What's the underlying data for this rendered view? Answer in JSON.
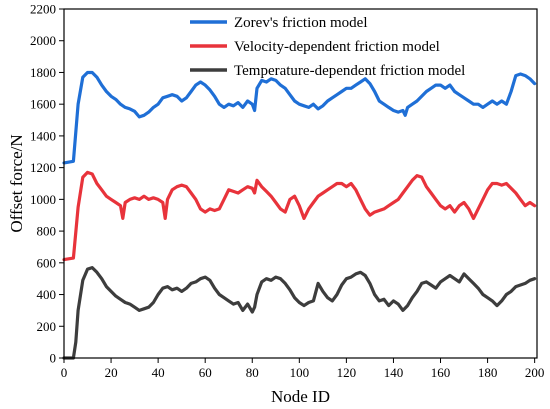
{
  "chart_data": {
    "type": "line",
    "title": "",
    "xlabel": "Node ID",
    "ylabel": "Offset force/N",
    "xlim": [
      0,
      201
    ],
    "ylim": [
      0,
      2200
    ],
    "xticks": [
      0,
      20,
      40,
      60,
      80,
      100,
      120,
      140,
      160,
      180,
      200
    ],
    "yticks": [
      0,
      200,
      400,
      600,
      800,
      1000,
      1200,
      1400,
      1600,
      1800,
      2000,
      2200
    ],
    "grid": false,
    "legend_position": "top-right",
    "series": [
      {
        "name": "Zorev's friction model",
        "color": "#1f6fd6",
        "x": [
          0,
          4,
          6,
          8,
          10,
          12,
          14,
          16,
          18,
          20,
          22,
          24,
          26,
          28,
          30,
          32,
          34,
          36,
          38,
          40,
          42,
          44,
          46,
          48,
          50,
          52,
          54,
          56,
          58,
          60,
          62,
          64,
          66,
          68,
          70,
          72,
          74,
          76,
          78,
          80,
          81,
          82,
          84,
          86,
          88,
          90,
          92,
          94,
          96,
          98,
          100,
          102,
          104,
          106,
          108,
          110,
          112,
          114,
          116,
          118,
          120,
          122,
          124,
          126,
          128,
          130,
          132,
          134,
          136,
          138,
          140,
          142,
          144,
          145,
          146,
          148,
          150,
          152,
          154,
          156,
          158,
          160,
          162,
          164,
          166,
          168,
          170,
          172,
          174,
          176,
          178,
          180,
          182,
          184,
          186,
          188,
          190,
          192,
          194,
          196,
          198,
          200
        ],
        "y": [
          1230,
          1240,
          1600,
          1770,
          1800,
          1800,
          1770,
          1720,
          1680,
          1650,
          1630,
          1600,
          1580,
          1570,
          1555,
          1520,
          1530,
          1550,
          1580,
          1600,
          1640,
          1650,
          1660,
          1650,
          1620,
          1640,
          1680,
          1720,
          1740,
          1720,
          1690,
          1650,
          1600,
          1580,
          1600,
          1590,
          1610,
          1580,
          1620,
          1600,
          1560,
          1700,
          1750,
          1740,
          1760,
          1750,
          1720,
          1700,
          1660,
          1620,
          1600,
          1590,
          1580,
          1600,
          1570,
          1590,
          1620,
          1640,
          1660,
          1680,
          1700,
          1700,
          1720,
          1740,
          1760,
          1730,
          1680,
          1620,
          1600,
          1580,
          1560,
          1550,
          1560,
          1530,
          1580,
          1600,
          1620,
          1650,
          1680,
          1700,
          1720,
          1720,
          1700,
          1720,
          1680,
          1660,
          1640,
          1620,
          1600,
          1600,
          1580,
          1600,
          1620,
          1600,
          1620,
          1600,
          1680,
          1780,
          1790,
          1780,
          1760,
          1730
        ]
      },
      {
        "name": "Velocity-dependent friction model",
        "color": "#e8333b",
        "x": [
          0,
          4,
          6,
          8,
          10,
          12,
          14,
          16,
          18,
          20,
          22,
          24,
          25,
          26,
          28,
          30,
          32,
          34,
          36,
          38,
          40,
          42,
          43,
          44,
          46,
          48,
          50,
          52,
          54,
          56,
          58,
          60,
          62,
          64,
          66,
          68,
          70,
          72,
          74,
          76,
          78,
          80,
          81,
          82,
          84,
          86,
          88,
          90,
          92,
          94,
          96,
          98,
          100,
          102,
          104,
          106,
          108,
          110,
          112,
          114,
          116,
          118,
          120,
          122,
          124,
          126,
          128,
          130,
          132,
          134,
          136,
          138,
          140,
          142,
          144,
          146,
          148,
          150,
          152,
          154,
          156,
          158,
          160,
          162,
          164,
          166,
          168,
          170,
          172,
          174,
          176,
          178,
          180,
          182,
          184,
          186,
          188,
          190,
          192,
          194,
          196,
          198,
          200
        ],
        "y": [
          620,
          630,
          950,
          1140,
          1170,
          1160,
          1100,
          1060,
          1020,
          1000,
          980,
          960,
          880,
          980,
          1000,
          1010,
          1000,
          1020,
          1000,
          1010,
          1000,
          980,
          880,
          1000,
          1060,
          1080,
          1090,
          1080,
          1040,
          1000,
          940,
          920,
          940,
          930,
          940,
          1000,
          1060,
          1050,
          1040,
          1060,
          1080,
          1070,
          1040,
          1120,
          1080,
          1050,
          1020,
          980,
          940,
          920,
          1000,
          1020,
          960,
          880,
          940,
          980,
          1020,
          1040,
          1060,
          1080,
          1100,
          1100,
          1080,
          1100,
          1060,
          1000,
          940,
          900,
          920,
          930,
          940,
          960,
          980,
          1000,
          1040,
          1080,
          1120,
          1150,
          1140,
          1080,
          1040,
          1000,
          960,
          940,
          960,
          920,
          960,
          980,
          940,
          880,
          940,
          1000,
          1060,
          1100,
          1100,
          1090,
          1100,
          1070,
          1040,
          1000,
          960,
          980,
          960
        ]
      },
      {
        "name": "Temperature-dependent friction model",
        "color": "#3d3d3d",
        "x": [
          0,
          4,
          5,
          6,
          8,
          10,
          12,
          14,
          16,
          18,
          20,
          22,
          24,
          26,
          28,
          30,
          32,
          34,
          36,
          38,
          40,
          42,
          44,
          46,
          48,
          50,
          52,
          54,
          56,
          58,
          60,
          62,
          64,
          66,
          68,
          70,
          72,
          74,
          76,
          78,
          80,
          81,
          82,
          84,
          86,
          88,
          90,
          92,
          94,
          96,
          98,
          100,
          102,
          104,
          106,
          108,
          110,
          112,
          114,
          116,
          118,
          120,
          122,
          124,
          126,
          128,
          130,
          132,
          134,
          136,
          138,
          140,
          142,
          144,
          146,
          148,
          150,
          152,
          154,
          156,
          158,
          160,
          162,
          164,
          166,
          168,
          170,
          172,
          174,
          176,
          178,
          180,
          182,
          184,
          186,
          188,
          190,
          192,
          194,
          196,
          198,
          200
        ],
        "y": [
          0,
          0,
          100,
          300,
          490,
          560,
          570,
          540,
          500,
          450,
          420,
          390,
          370,
          350,
          340,
          320,
          300,
          310,
          320,
          350,
          400,
          440,
          450,
          430,
          440,
          420,
          440,
          470,
          480,
          500,
          510,
          490,
          440,
          400,
          380,
          360,
          340,
          350,
          300,
          340,
          290,
          320,
          400,
          480,
          500,
          490,
          510,
          500,
          470,
          430,
          380,
          350,
          330,
          350,
          360,
          470,
          420,
          380,
          360,
          400,
          460,
          500,
          510,
          530,
          540,
          520,
          470,
          400,
          360,
          370,
          330,
          360,
          340,
          300,
          330,
          380,
          420,
          470,
          480,
          460,
          440,
          480,
          500,
          520,
          500,
          480,
          530,
          500,
          470,
          440,
          400,
          380,
          360,
          330,
          360,
          400,
          420,
          450,
          460,
          470,
          490,
          500
        ]
      }
    ]
  }
}
